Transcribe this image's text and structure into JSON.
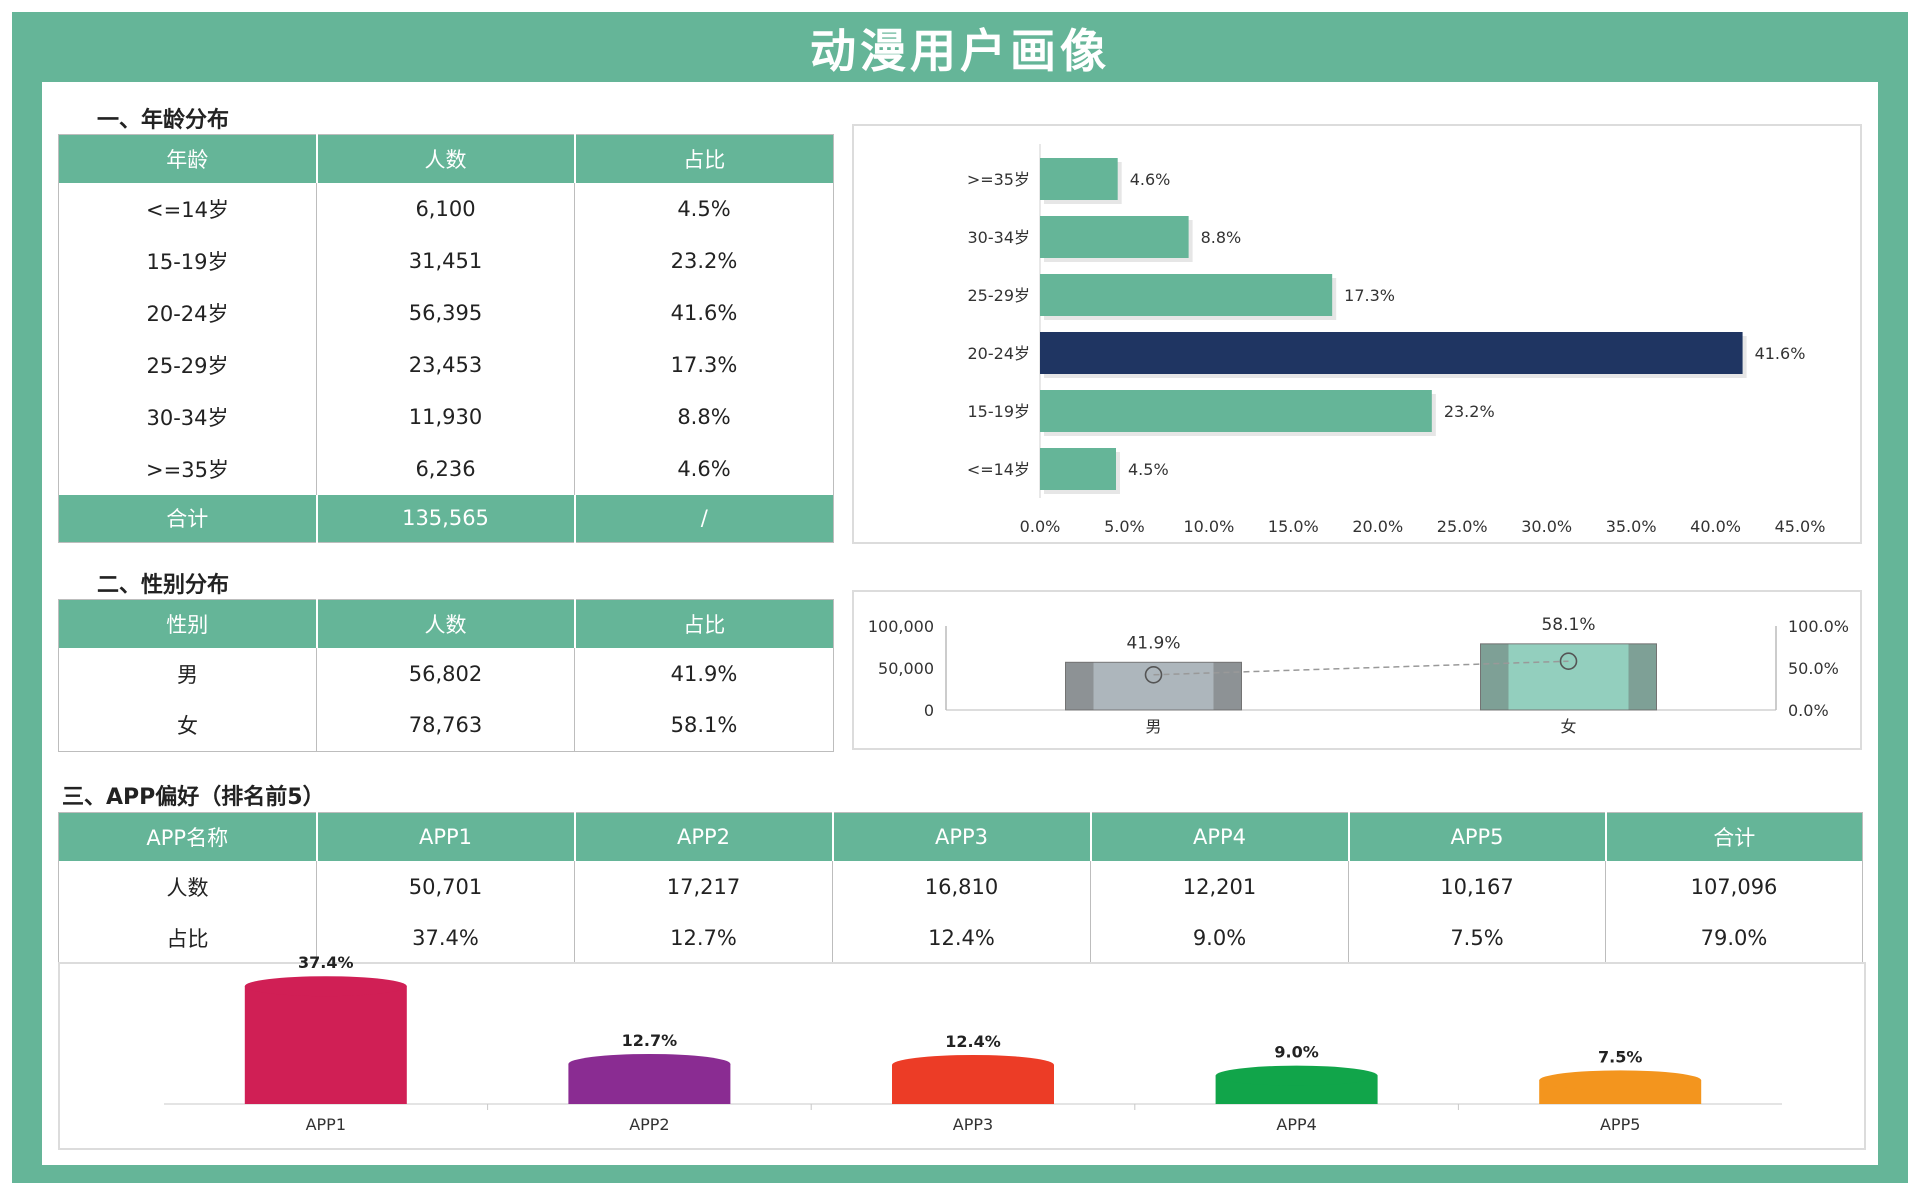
{
  "title": "动漫用户画像",
  "sections": {
    "age": "一、年龄分布",
    "gender": "二、性别分布",
    "app": "三、APP偏好（排名前5）"
  },
  "age_table": {
    "headers": [
      "年龄",
      "人数",
      "占比"
    ],
    "rows": [
      [
        "<=14岁",
        "6,100",
        "4.5%"
      ],
      [
        "15-19岁",
        "31,451",
        "23.2%"
      ],
      [
        "20-24岁",
        "56,395",
        "41.6%"
      ],
      [
        "25-29岁",
        "23,453",
        "17.3%"
      ],
      [
        "30-34岁",
        "11,930",
        "8.8%"
      ],
      [
        ">=35岁",
        "6,236",
        "4.6%"
      ]
    ],
    "total": [
      "合计",
      "135,565",
      "/"
    ]
  },
  "gender_table": {
    "headers": [
      "性别",
      "人数",
      "占比"
    ],
    "rows": [
      [
        "男",
        "56,802",
        "41.9%"
      ],
      [
        "女",
        "78,763",
        "58.1%"
      ]
    ]
  },
  "app_table": {
    "headers": [
      "APP名称",
      "APP1",
      "APP2",
      "APP3",
      "APP4",
      "APP5",
      "合计"
    ],
    "rows": [
      [
        "人数",
        "50,701",
        "17,217",
        "16,810",
        "12,201",
        "10,167",
        "107,096"
      ],
      [
        "占比",
        "37.4%",
        "12.7%",
        "12.4%",
        "9.0%",
        "7.5%",
        "79.0%"
      ]
    ]
  },
  "chart_data": [
    {
      "type": "bar",
      "orientation": "horizontal",
      "categories": [
        ">=35岁",
        "30-34岁",
        "25-29岁",
        "20-24岁",
        "15-19岁",
        "<=14岁"
      ],
      "values": [
        4.6,
        8.8,
        17.3,
        41.6,
        23.2,
        4.5
      ],
      "labels": [
        "4.6%",
        "8.8%",
        "17.3%",
        "41.6%",
        "23.2%",
        "4.5%"
      ],
      "xlim": [
        0,
        45
      ],
      "ticks": [
        "0.0%",
        "5.0%",
        "10.0%",
        "15.0%",
        "20.0%",
        "25.0%",
        "30.0%",
        "35.0%",
        "40.0%",
        "45.0%"
      ],
      "highlight_index": 3,
      "colors": {
        "default": "#65b598",
        "highlight": "#1f3562"
      }
    },
    {
      "type": "bar",
      "categories": [
        "男",
        "女"
      ],
      "values": [
        56802,
        78763
      ],
      "ylim": [
        0,
        100000
      ],
      "left_ticks": [
        "0",
        "50,000",
        "100,000"
      ],
      "secondary_series": {
        "name": "占比",
        "values": [
          41.9,
          58.1
        ],
        "labels": [
          "41.9%",
          "58.1%"
        ]
      },
      "right_ticks": [
        "0.0%",
        "50.0%",
        "100.0%"
      ],
      "secondary_ylim": [
        0,
        100
      ],
      "colors": [
        "#adb6bc",
        "#93cfbe"
      ]
    },
    {
      "type": "bar",
      "categories": [
        "APP1",
        "APP2",
        "APP3",
        "APP4",
        "APP5"
      ],
      "values": [
        37.4,
        12.7,
        12.4,
        9.0,
        7.5
      ],
      "labels": [
        "37.4%",
        "12.7%",
        "12.4%",
        "9.0%",
        "7.5%"
      ],
      "ylim": [
        0,
        40
      ],
      "colors": [
        "#d01f55",
        "#8a2c92",
        "#ec3c26",
        "#11a54a",
        "#f3951e"
      ]
    }
  ]
}
